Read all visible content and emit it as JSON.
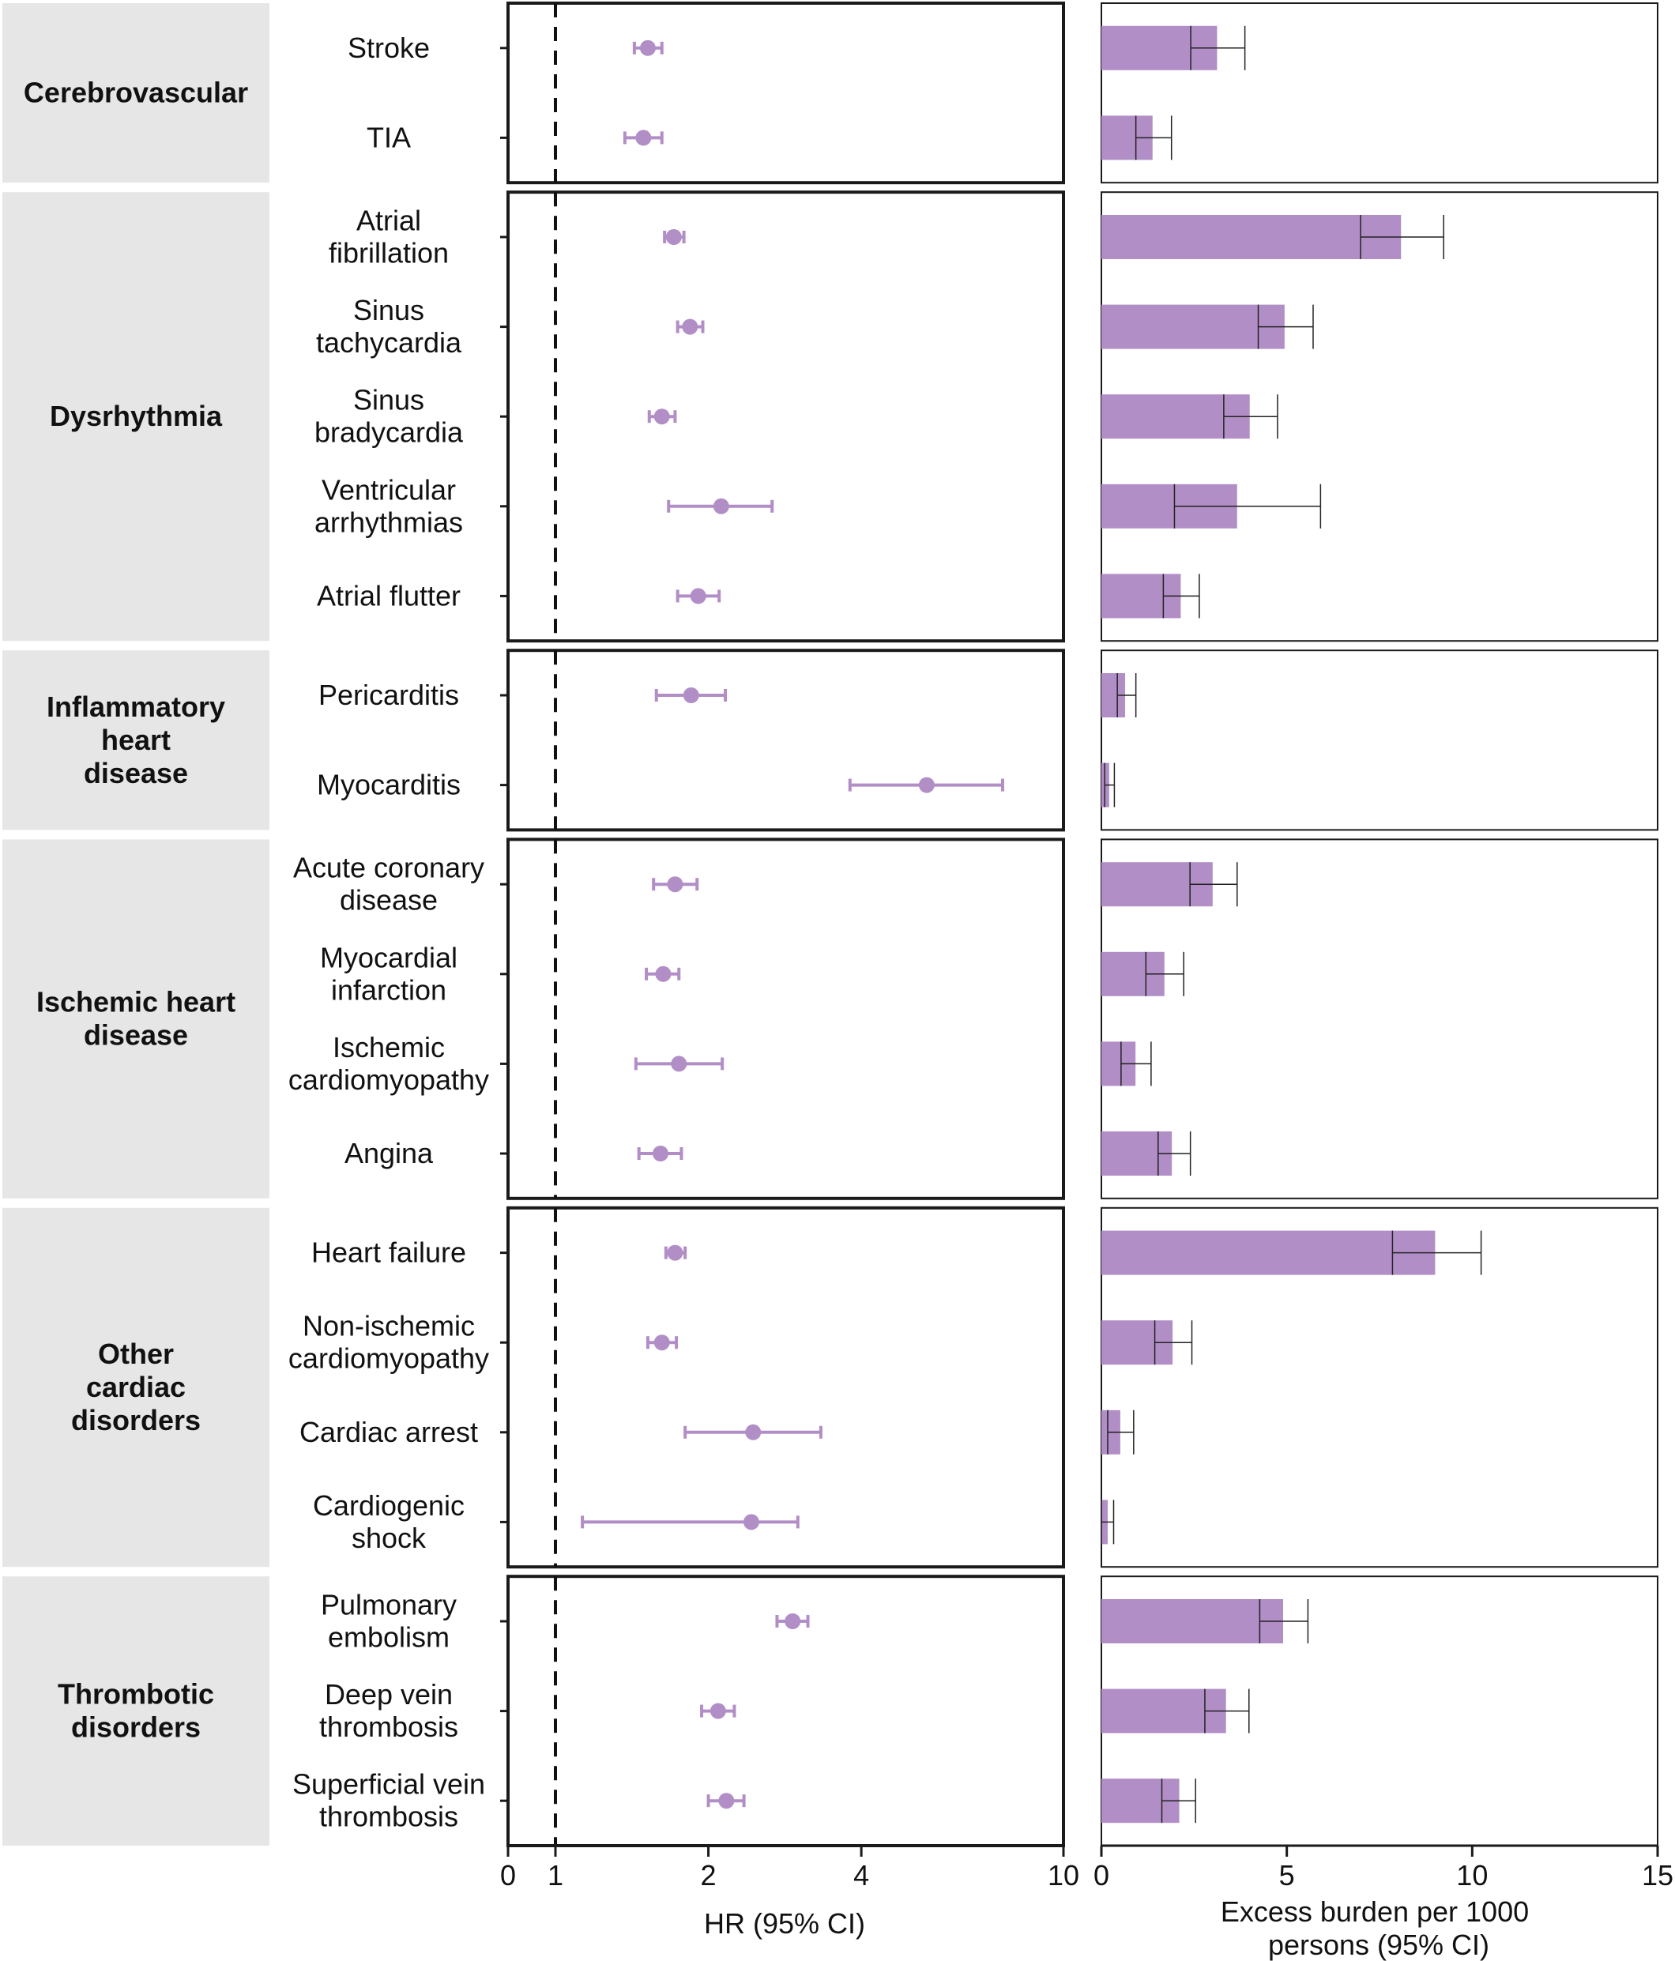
{
  "chart_data": {
    "type": "forest_and_bar",
    "colors": {
      "marker": "#b28ec7",
      "bar": "#b28ec7",
      "frame": "#1a1a1a",
      "group_bg": "#e6e6e6"
    },
    "groups": [
      {
        "label": [
          "Cerebrovascular"
        ],
        "outcomes": [
          {
            "label": [
              "Stroke"
            ],
            "hr": 1.52,
            "hr_lo": 1.43,
            "hr_hi": 1.62,
            "burden": 3.12,
            "burden_lo": 2.41,
            "burden_hi": 3.87
          },
          {
            "label": [
              "TIA"
            ],
            "hr": 1.49,
            "hr_lo": 1.37,
            "hr_hi": 1.62,
            "burden": 1.38,
            "burden_lo": 0.93,
            "burden_hi": 1.89
          }
        ]
      },
      {
        "label": [
          "Dysrhythmia"
        ],
        "outcomes": [
          {
            "label": [
              "Atrial",
              "fibrillation"
            ],
            "hr": 1.71,
            "hr_lo": 1.64,
            "hr_hi": 1.79,
            "burden": 8.08,
            "burden_lo": 6.99,
            "burden_hi": 9.23
          },
          {
            "label": [
              "Sinus",
              "tachycardia"
            ],
            "hr": 1.84,
            "hr_lo": 1.74,
            "hr_hi": 1.95,
            "burden": 4.94,
            "burden_lo": 4.23,
            "burden_hi": 5.71
          },
          {
            "label": [
              "Sinus",
              "bradycardia"
            ],
            "hr": 1.62,
            "hr_lo": 1.53,
            "hr_hi": 1.72,
            "burden": 4.0,
            "burden_lo": 3.3,
            "burden_hi": 4.75
          },
          {
            "label": [
              "Ventricular",
              "arrhythmias"
            ],
            "hr": 2.12,
            "hr_lo": 1.67,
            "hr_hi": 2.67,
            "burden": 3.66,
            "burden_lo": 1.97,
            "burden_hi": 5.91
          },
          {
            "label": [
              "Atrial flutter"
            ],
            "hr": 1.91,
            "hr_lo": 1.74,
            "hr_hi": 2.1,
            "burden": 2.14,
            "burden_lo": 1.67,
            "burden_hi": 2.64
          }
        ]
      },
      {
        "label": [
          "Inflammatory",
          "heart",
          "disease"
        ],
        "outcomes": [
          {
            "label": [
              "Pericarditis"
            ],
            "hr": 1.85,
            "hr_lo": 1.58,
            "hr_hi": 2.16,
            "burden": 0.64,
            "burden_lo": 0.43,
            "burden_hi": 0.93
          },
          {
            "label": [
              "Myocarditis"
            ],
            "hr": 5.38,
            "hr_lo": 3.8,
            "hr_hi": 7.59,
            "burden": 0.21,
            "burden_lo": 0.09,
            "burden_hi": 0.35
          }
        ]
      },
      {
        "label": [
          "Ischemic heart",
          "disease"
        ],
        "outcomes": [
          {
            "label": [
              "Acute coronary",
              "disease"
            ],
            "hr": 1.72,
            "hr_lo": 1.56,
            "hr_hi": 1.9,
            "burden": 3.0,
            "burden_lo": 2.39,
            "burden_hi": 3.66
          },
          {
            "label": [
              "Myocardial",
              "infarction"
            ],
            "hr": 1.63,
            "hr_lo": 1.51,
            "hr_hi": 1.75,
            "burden": 1.7,
            "burden_lo": 1.2,
            "burden_hi": 2.22
          },
          {
            "label": [
              "Ischemic",
              "cardiomyopathy"
            ],
            "hr": 1.75,
            "hr_lo": 1.44,
            "hr_hi": 2.13,
            "burden": 0.92,
            "burden_lo": 0.53,
            "burden_hi": 1.34
          },
          {
            "label": [
              "Angina"
            ],
            "hr": 1.61,
            "hr_lo": 1.46,
            "hr_hi": 1.77,
            "burden": 1.9,
            "burden_lo": 1.53,
            "burden_hi": 2.4
          }
        ]
      },
      {
        "label": [
          "Other",
          "cardiac",
          "disorders"
        ],
        "outcomes": [
          {
            "label": [
              "Heart failure"
            ],
            "hr": 1.72,
            "hr_lo": 1.65,
            "hr_hi": 1.8,
            "burden": 9.0,
            "burden_lo": 7.85,
            "burden_hi": 10.24
          },
          {
            "label": [
              "Non-ischemic",
              "cardiomyopathy"
            ],
            "hr": 1.62,
            "hr_lo": 1.52,
            "hr_hi": 1.73,
            "burden": 1.92,
            "burden_lo": 1.44,
            "burden_hi": 2.44
          },
          {
            "label": [
              "Cardiac arrest"
            ],
            "hr": 2.45,
            "hr_lo": 1.8,
            "hr_hi": 3.33,
            "burden": 0.51,
            "burden_lo": 0.17,
            "burden_hi": 0.87
          },
          {
            "label": [
              "Cardiogenic",
              "shock"
            ],
            "hr": 2.43,
            "hr_lo": 1.13,
            "hr_hi": 3.0,
            "burden": 0.17,
            "burden_lo": 0.0,
            "burden_hi": 0.33
          }
        ]
      },
      {
        "label": [
          "Thrombotic",
          "disorders"
        ],
        "outcomes": [
          {
            "label": [
              "Pulmonary",
              "embolism"
            ],
            "hr": 2.93,
            "hr_lo": 2.73,
            "hr_hi": 3.14,
            "burden": 4.9,
            "burden_lo": 4.27,
            "burden_hi": 5.57
          },
          {
            "label": [
              "Deep vein",
              "thrombosis"
            ],
            "hr": 2.09,
            "hr_lo": 1.94,
            "hr_hi": 2.25,
            "burden": 3.36,
            "burden_lo": 2.79,
            "burden_hi": 3.98
          },
          {
            "label": [
              "Superficial vein",
              "thrombosis"
            ],
            "hr": 2.17,
            "hr_lo": 2.0,
            "hr_hi": 2.35,
            "burden": 2.1,
            "burden_lo": 1.63,
            "burden_hi": 2.54
          }
        ]
      }
    ],
    "forest_axis": {
      "scale": "log",
      "ticks": [
        0,
        1,
        2,
        4,
        10
      ],
      "reference_line": 1,
      "label": "HR (95% CI)"
    },
    "bar_axis": {
      "min": 0,
      "max": 15,
      "ticks": [
        0,
        5,
        10,
        15
      ],
      "label": [
        "Excess burden per 1000",
        "persons (95% CI)"
      ]
    }
  }
}
